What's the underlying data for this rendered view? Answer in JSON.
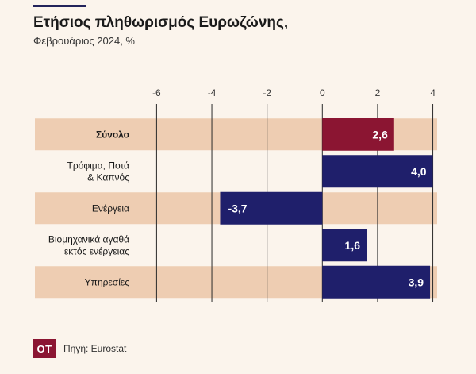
{
  "header": {
    "title": "Ετήσιος πληθωρισμός Ευρωζώνης,",
    "subtitle": "Φεβρουάριος 2024, %"
  },
  "footer": {
    "logo_text": "OT",
    "source": "Πηγή: Eurostat"
  },
  "colors": {
    "highlight_bar": "#8b1532",
    "bar": "#1f1f6b",
    "band": "#eecdb2",
    "grid": "#2a2a2a"
  },
  "chart_data": {
    "type": "bar",
    "orientation": "horizontal",
    "title": "Ετήσιος πληθωρισμός Ευρωζώνης,",
    "subtitle": "Φεβρουάριος 2024, %",
    "categories": [
      [
        "Σύνολο"
      ],
      [
        "Τρόφιμα, Ποτά",
        "& Καπνός"
      ],
      [
        "Ενέργεια"
      ],
      [
        "Βιομηχανικά αγαθά",
        "εκτός ενέργειας"
      ],
      [
        "Υπηρεσίες"
      ]
    ],
    "values": [
      2.6,
      4.0,
      -3.7,
      1.6,
      3.9
    ],
    "value_labels": [
      "2,6",
      "4,0",
      "-3,7",
      "1,6",
      "3,9"
    ],
    "highlight_index": 0,
    "xlim": [
      -6.5,
      4.3
    ],
    "xticks": [
      -6,
      -4,
      -2,
      0,
      2,
      4
    ],
    "xtick_labels": [
      "-6",
      "-4",
      "-2",
      "0",
      "2",
      "4"
    ],
    "grid": true,
    "xaxis_position": "top"
  }
}
